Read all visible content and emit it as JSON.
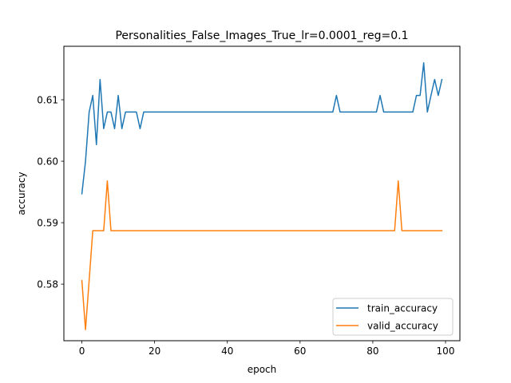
{
  "chart_data": {
    "type": "line",
    "title": "Personalities_False_Images_True_lr=0.0001_reg=0.1",
    "xlabel": "epoch",
    "ylabel": "accuracy",
    "xlim": [
      -4.95,
      103.95
    ],
    "ylim": [
      0.5708,
      0.6187
    ],
    "xticks": [
      0,
      20,
      40,
      60,
      80,
      100
    ],
    "yticks": [
      0.58,
      0.59,
      0.6,
      0.61
    ],
    "ytick_labels": [
      "0.58",
      "0.59",
      "0.60",
      "0.61"
    ],
    "grid": false,
    "legend_position": "lower right",
    "series": [
      {
        "name": "train_accuracy",
        "color": "#1f77b4",
        "x": [
          0,
          1,
          2,
          3,
          4,
          5,
          6,
          7,
          8,
          9,
          10,
          11,
          12,
          13,
          14,
          15,
          16,
          17,
          18,
          19,
          20,
          21,
          22,
          23,
          24,
          25,
          26,
          27,
          28,
          29,
          30,
          31,
          32,
          33,
          34,
          35,
          36,
          37,
          38,
          39,
          40,
          41,
          42,
          43,
          44,
          45,
          46,
          47,
          48,
          49,
          50,
          51,
          52,
          53,
          54,
          55,
          56,
          57,
          58,
          59,
          60,
          61,
          62,
          63,
          64,
          65,
          66,
          67,
          68,
          69,
          70,
          71,
          72,
          73,
          74,
          75,
          76,
          77,
          78,
          79,
          80,
          81,
          82,
          83,
          84,
          85,
          86,
          87,
          88,
          89,
          90,
          91,
          92,
          93,
          94,
          95,
          96,
          97,
          98,
          99
        ],
        "values": [
          0.5947,
          0.6,
          0.608,
          0.6107,
          0.6027,
          0.6133,
          0.6053,
          0.608,
          0.608,
          0.6053,
          0.6107,
          0.6053,
          0.608,
          0.608,
          0.608,
          0.608,
          0.6053,
          0.608,
          0.608,
          0.608,
          0.608,
          0.608,
          0.608,
          0.608,
          0.608,
          0.608,
          0.608,
          0.608,
          0.608,
          0.608,
          0.608,
          0.608,
          0.608,
          0.608,
          0.608,
          0.608,
          0.608,
          0.608,
          0.608,
          0.608,
          0.608,
          0.608,
          0.608,
          0.608,
          0.608,
          0.608,
          0.608,
          0.608,
          0.608,
          0.608,
          0.608,
          0.608,
          0.608,
          0.608,
          0.608,
          0.608,
          0.608,
          0.608,
          0.608,
          0.608,
          0.608,
          0.608,
          0.608,
          0.608,
          0.608,
          0.608,
          0.608,
          0.608,
          0.608,
          0.608,
          0.6107,
          0.608,
          0.608,
          0.608,
          0.608,
          0.608,
          0.608,
          0.608,
          0.608,
          0.608,
          0.608,
          0.608,
          0.6107,
          0.608,
          0.608,
          0.608,
          0.608,
          0.608,
          0.608,
          0.608,
          0.608,
          0.608,
          0.6107,
          0.6107,
          0.616,
          0.608,
          0.6107,
          0.6133,
          0.6107,
          0.6133
        ]
      },
      {
        "name": "valid_accuracy",
        "color": "#ff7f0e",
        "x": [
          0,
          1,
          2,
          3,
          4,
          5,
          6,
          7,
          8,
          9,
          10,
          11,
          12,
          13,
          14,
          15,
          16,
          17,
          18,
          19,
          20,
          21,
          22,
          23,
          24,
          25,
          26,
          27,
          28,
          29,
          30,
          31,
          32,
          33,
          34,
          35,
          36,
          37,
          38,
          39,
          40,
          41,
          42,
          43,
          44,
          45,
          46,
          47,
          48,
          49,
          50,
          51,
          52,
          53,
          54,
          55,
          56,
          57,
          58,
          59,
          60,
          61,
          62,
          63,
          64,
          65,
          66,
          67,
          68,
          69,
          70,
          71,
          72,
          73,
          74,
          75,
          76,
          77,
          78,
          79,
          80,
          81,
          82,
          83,
          84,
          85,
          86,
          87,
          88,
          89,
          90,
          91,
          92,
          93,
          94,
          95,
          96,
          97,
          98,
          99
        ],
        "values": [
          0.5806,
          0.5726,
          0.5806,
          0.5887,
          0.5887,
          0.5887,
          0.5887,
          0.5968,
          0.5887,
          0.5887,
          0.5887,
          0.5887,
          0.5887,
          0.5887,
          0.5887,
          0.5887,
          0.5887,
          0.5887,
          0.5887,
          0.5887,
          0.5887,
          0.5887,
          0.5887,
          0.5887,
          0.5887,
          0.5887,
          0.5887,
          0.5887,
          0.5887,
          0.5887,
          0.5887,
          0.5887,
          0.5887,
          0.5887,
          0.5887,
          0.5887,
          0.5887,
          0.5887,
          0.5887,
          0.5887,
          0.5887,
          0.5887,
          0.5887,
          0.5887,
          0.5887,
          0.5887,
          0.5887,
          0.5887,
          0.5887,
          0.5887,
          0.5887,
          0.5887,
          0.5887,
          0.5887,
          0.5887,
          0.5887,
          0.5887,
          0.5887,
          0.5887,
          0.5887,
          0.5887,
          0.5887,
          0.5887,
          0.5887,
          0.5887,
          0.5887,
          0.5887,
          0.5887,
          0.5887,
          0.5887,
          0.5887,
          0.5887,
          0.5887,
          0.5887,
          0.5887,
          0.5887,
          0.5887,
          0.5887,
          0.5887,
          0.5887,
          0.5887,
          0.5887,
          0.5887,
          0.5887,
          0.5887,
          0.5887,
          0.5887,
          0.5968,
          0.5887,
          0.5887,
          0.5887,
          0.5887,
          0.5887,
          0.5887,
          0.5887,
          0.5887,
          0.5887,
          0.5887,
          0.5887,
          0.5887
        ]
      }
    ]
  }
}
